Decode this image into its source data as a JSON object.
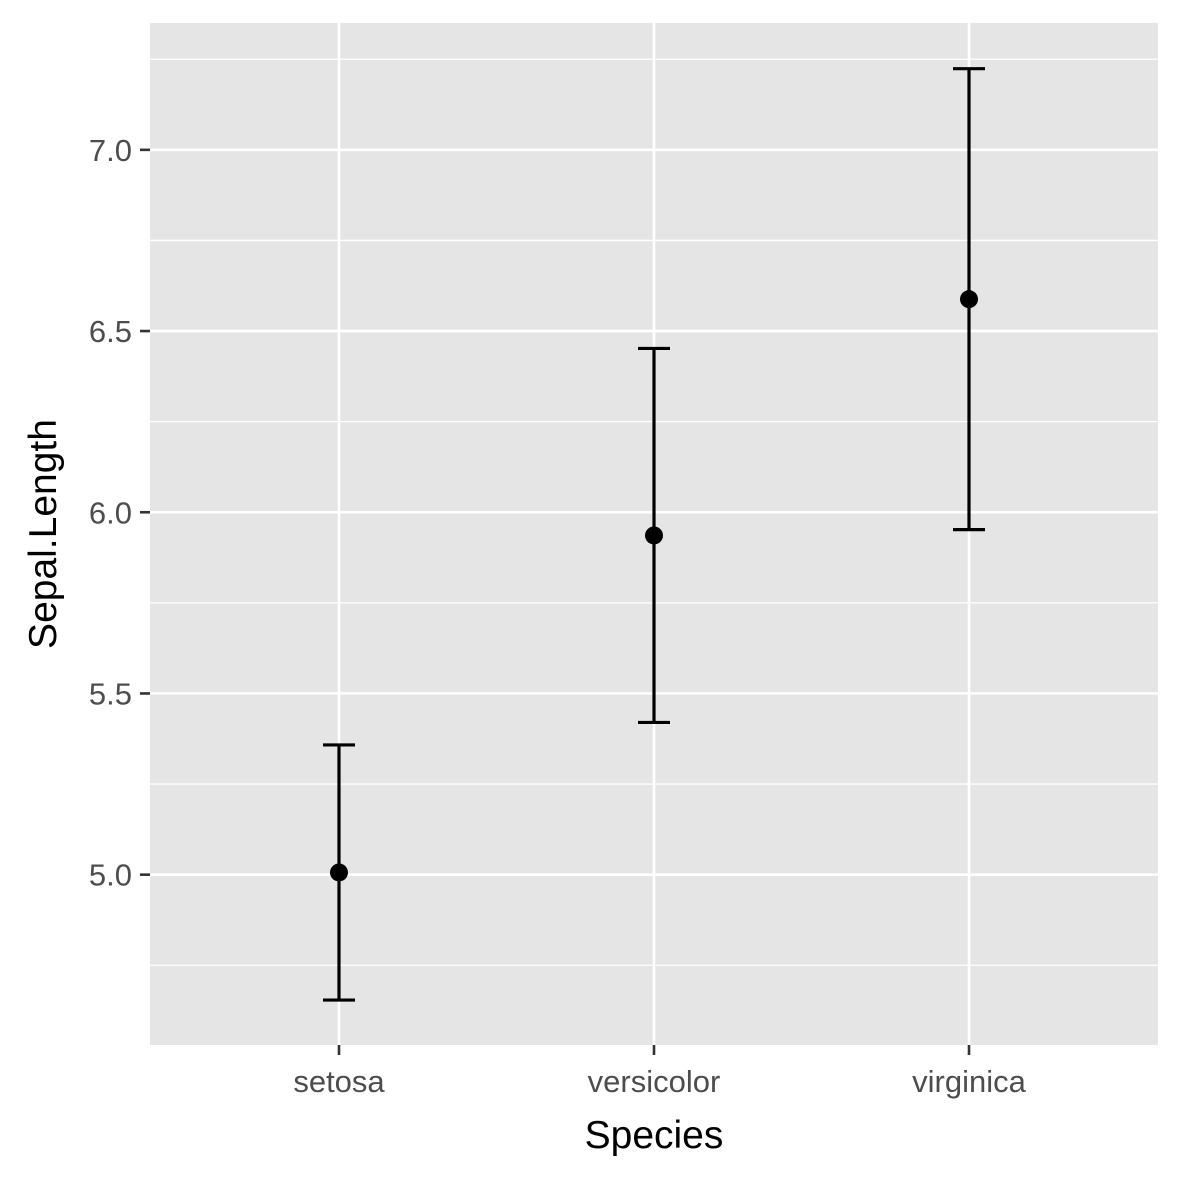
{
  "chart_data": {
    "type": "errorbar",
    "xlabel": "Species",
    "ylabel": "Sepal.Length",
    "categories": [
      "setosa",
      "versicolor",
      "virginica"
    ],
    "points": [
      {
        "category": "setosa",
        "mean": 5.006,
        "lower": 4.654,
        "upper": 5.358
      },
      {
        "category": "versicolor",
        "mean": 5.936,
        "lower": 5.42,
        "upper": 6.452
      },
      {
        "category": "virginica",
        "mean": 6.588,
        "lower": 5.952,
        "upper": 7.224
      }
    ],
    "ylim": [
      4.53,
      7.35
    ],
    "yticks": [
      5.0,
      5.5,
      6.0,
      6.5,
      7.0
    ],
    "ytick_labels": [
      "5.0",
      "5.5",
      "6.0",
      "6.5",
      "7.0"
    ],
    "grid": true,
    "colors": {
      "panel": "#e5e5e5",
      "grid": "#ffffff",
      "marks": "#000000",
      "tick_text": "#4d4d4d"
    }
  }
}
